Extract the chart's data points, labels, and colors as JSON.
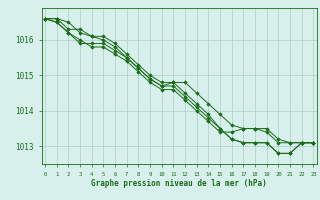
{
  "title": "Graphe pression niveau de la mer (hPa)",
  "xlabel_hours": [
    0,
    1,
    2,
    3,
    4,
    5,
    6,
    7,
    8,
    9,
    10,
    11,
    12,
    13,
    14,
    15,
    16,
    17,
    18,
    19,
    20,
    21,
    22,
    23
  ],
  "series": [
    [
      1016.6,
      1016.6,
      1016.5,
      1016.2,
      1016.1,
      1016.0,
      1015.8,
      1015.5,
      1015.2,
      1014.9,
      1014.7,
      1014.7,
      1014.4,
      1014.1,
      1013.8,
      1013.5,
      1013.2,
      1013.1,
      1013.1,
      1013.1,
      1012.8,
      1012.8,
      1013.1,
      1013.1
    ],
    [
      1016.6,
      1016.6,
      1016.3,
      1016.3,
      1016.1,
      1016.1,
      1015.9,
      1015.6,
      1015.3,
      1015.0,
      1014.8,
      1014.8,
      1014.5,
      1014.2,
      1013.9,
      1013.5,
      1013.2,
      1013.1,
      1013.1,
      1013.1,
      1012.8,
      1012.8,
      1013.1,
      1013.1
    ],
    [
      1016.6,
      1016.5,
      1016.2,
      1016.0,
      1015.8,
      1015.8,
      1015.6,
      1015.4,
      1015.1,
      1014.8,
      1014.6,
      1014.6,
      1014.3,
      1014.0,
      1013.7,
      1013.4,
      1013.4,
      1013.5,
      1013.5,
      1013.4,
      1013.1,
      1013.1,
      1013.1,
      1013.1
    ],
    [
      1016.6,
      1016.5,
      1016.2,
      1015.9,
      1015.9,
      1015.9,
      1015.7,
      1015.5,
      1015.2,
      1014.9,
      1014.7,
      1014.8,
      1014.8,
      1014.5,
      1014.2,
      1013.9,
      1013.6,
      1013.5,
      1013.5,
      1013.5,
      1013.2,
      1013.1,
      1013.1,
      1013.1
    ]
  ],
  "line_color": "#1a6b1a",
  "marker_color": "#1a6b1a",
  "bg_color": "#d8f0ec",
  "grid_color": "#aacfc8",
  "axis_color": "#1a6b1a",
  "tick_color": "#1a6b1a",
  "title_color": "#1a6b1a",
  "ylim": [
    1012.5,
    1016.9
  ],
  "yticks": [
    1013,
    1014,
    1015,
    1016
  ],
  "xlim": [
    -0.3,
    23.3
  ]
}
